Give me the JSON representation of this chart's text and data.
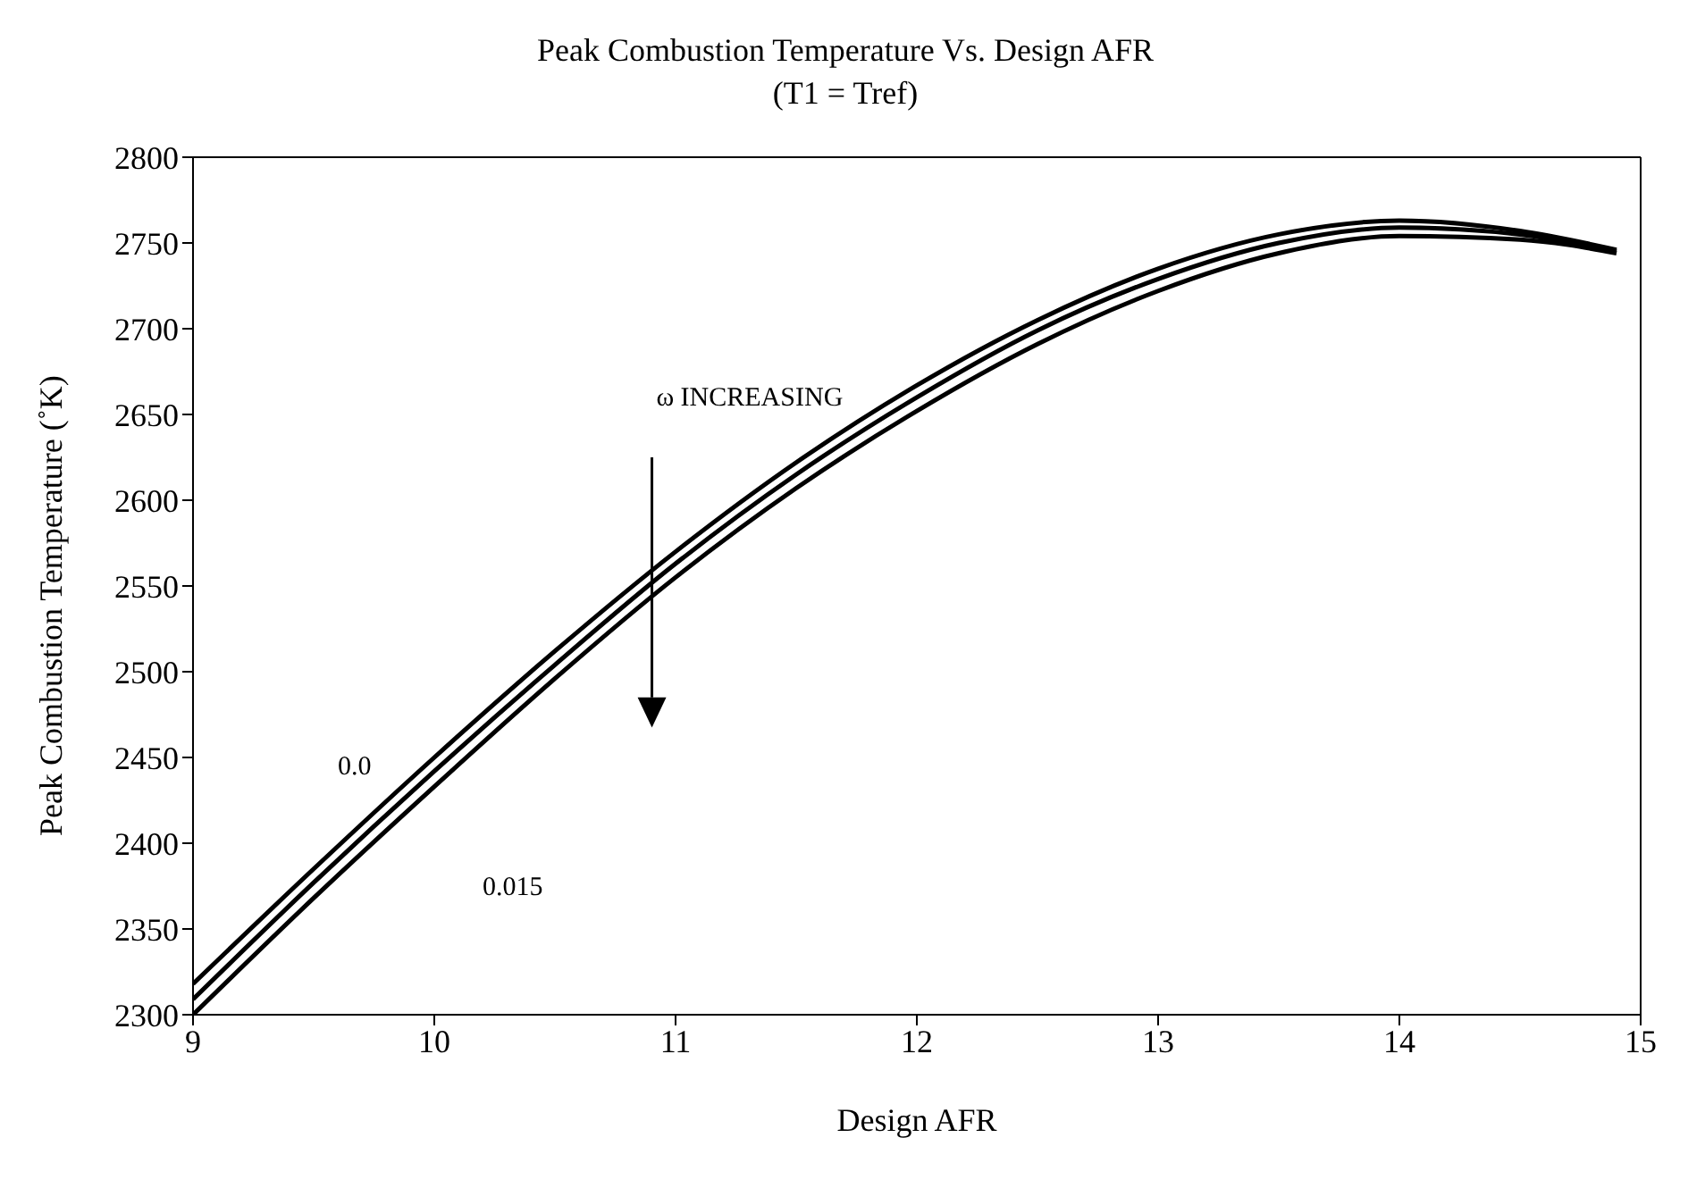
{
  "chart_data": {
    "type": "line",
    "title": "Peak Combustion Temperature Vs. Design AFR",
    "subtitle": "(T1 = Tref)",
    "xlabel": "Design AFR",
    "ylabel": "Peak Combustion Temperature (˚K)",
    "x": [
      9,
      9.5,
      10,
      10.5,
      11,
      11.5,
      12,
      12.5,
      13,
      13.5,
      14,
      14.5,
      14.9
    ],
    "series": [
      {
        "color": "#000000",
        "values": [
          2318,
          2385,
          2450,
          2512,
          2570,
          2622,
          2667,
          2705,
          2735,
          2755,
          2763,
          2757,
          2746
        ]
      },
      {
        "color": "#000000",
        "values": [
          2309,
          2377,
          2442,
          2504,
          2563,
          2615,
          2660,
          2699,
          2729,
          2750,
          2759,
          2755,
          2745
        ]
      },
      {
        "color": "#000000",
        "values": [
          2300,
          2368,
          2433,
          2496,
          2555,
          2607,
          2652,
          2691,
          2722,
          2744,
          2754,
          2752,
          2744
        ]
      }
    ],
    "xlim": [
      9,
      15
    ],
    "xticks": [
      9,
      10,
      11,
      12,
      13,
      14,
      15
    ],
    "ylim": [
      2300,
      2800
    ],
    "yticks": [
      2300,
      2350,
      2400,
      2450,
      2500,
      2550,
      2600,
      2650,
      2700,
      2750,
      2800
    ],
    "grid": false,
    "legend": false,
    "marker": "none",
    "line_style": "solid",
    "annotations": [
      "0.0",
      "0.015",
      "ω INCREASING"
    ]
  }
}
